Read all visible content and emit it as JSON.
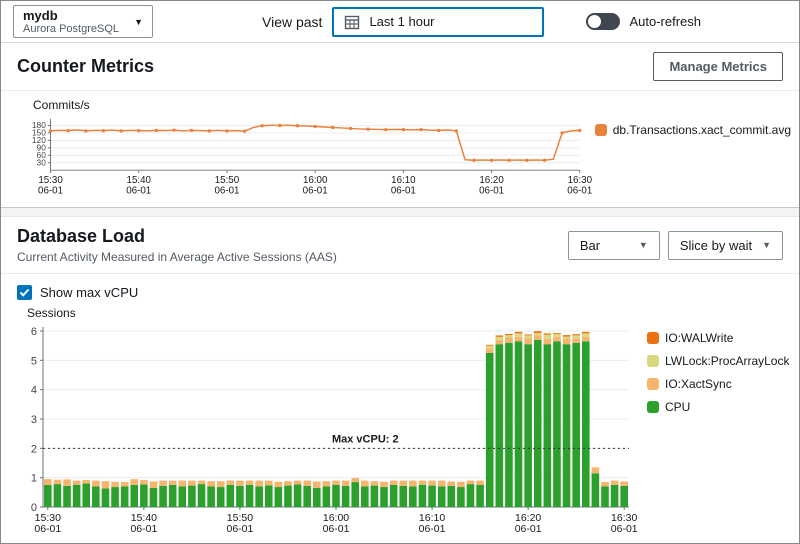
{
  "topbar": {
    "instance": {
      "name": "mydb",
      "engine": "Aurora PostgreSQL"
    },
    "view_past_label": "View past",
    "time_range": "Last 1 hour",
    "auto_refresh_label": "Auto-refresh",
    "auto_refresh_on": false
  },
  "counter_metrics": {
    "title": "Counter Metrics",
    "manage_button": "Manage Metrics"
  },
  "database_load": {
    "title": "Database Load",
    "subtitle": "Current Activity Measured in Average Active Sessions (AAS)",
    "chart_type_dropdown": "Bar",
    "slice_dropdown": "Slice by wait",
    "show_max_vcpu_label": "Show max vCPU",
    "show_max_vcpu_checked": true
  },
  "chart_data": [
    {
      "type": "line",
      "title": "Commits/s",
      "x_start": "15:30",
      "x_step_minutes": 1,
      "x_ticks": [
        {
          "time": "15:30",
          "date": "06-01"
        },
        {
          "time": "15:40",
          "date": "06-01"
        },
        {
          "time": "15:50",
          "date": "06-01"
        },
        {
          "time": "16:00",
          "date": "06-01"
        },
        {
          "time": "16:10",
          "date": "06-01"
        },
        {
          "time": "16:20",
          "date": "06-01"
        },
        {
          "time": "16:30",
          "date": "06-01"
        }
      ],
      "x_tick_every": 10,
      "ylim": [
        0,
        195
      ],
      "yticks": [
        30,
        60,
        90,
        120,
        150,
        180
      ],
      "grid": true,
      "legend_position": "right",
      "series": [
        {
          "name": "db.Transactions.xact_commit.avg",
          "color": "#e8823d",
          "values": [
            158,
            160,
            159,
            162,
            158,
            160,
            159,
            161,
            158,
            160,
            159,
            158,
            160,
            159,
            161,
            158,
            160,
            159,
            158,
            160,
            158,
            159,
            157,
            172,
            179,
            181,
            180,
            181,
            179,
            178,
            176,
            174,
            172,
            170,
            168,
            166,
            165,
            164,
            163,
            164,
            163,
            162,
            163,
            161,
            160,
            162,
            158,
            42,
            40,
            41,
            40,
            41,
            40,
            41,
            40,
            41,
            40,
            44,
            150,
            158,
            160
          ]
        }
      ]
    },
    {
      "type": "bar",
      "stacked": true,
      "title": "Sessions",
      "x_start": "15:30",
      "x_step_minutes": 1,
      "x_ticks": [
        {
          "time": "15:30",
          "date": "06-01"
        },
        {
          "time": "15:40",
          "date": "06-01"
        },
        {
          "time": "15:50",
          "date": "06-01"
        },
        {
          "time": "16:00",
          "date": "06-01"
        },
        {
          "time": "16:10",
          "date": "06-01"
        },
        {
          "time": "16:20",
          "date": "06-01"
        },
        {
          "time": "16:30",
          "date": "06-01"
        }
      ],
      "x_tick_every": 10,
      "ylim": [
        0,
        6
      ],
      "yticks": [
        0,
        1,
        2,
        3,
        4,
        5,
        6
      ],
      "grid": true,
      "legend_position": "right",
      "annotation": {
        "label": "Max vCPU: 2",
        "y": 2,
        "style": "dotted"
      },
      "series": [
        {
          "name": "CPU",
          "color": "#2ca02c",
          "values": [
            0.75,
            0.78,
            0.72,
            0.76,
            0.8,
            0.7,
            0.63,
            0.68,
            0.7,
            0.75,
            0.77,
            0.65,
            0.72,
            0.75,
            0.7,
            0.73,
            0.78,
            0.7,
            0.68,
            0.75,
            0.72,
            0.76,
            0.7,
            0.74,
            0.68,
            0.73,
            0.77,
            0.72,
            0.65,
            0.7,
            0.75,
            0.72,
            0.85,
            0.7,
            0.73,
            0.68,
            0.75,
            0.72,
            0.7,
            0.76,
            0.73,
            0.7,
            0.72,
            0.68,
            0.78,
            0.75,
            5.25,
            5.55,
            5.6,
            5.65,
            5.55,
            5.7,
            5.55,
            5.65,
            5.55,
            5.6,
            5.65,
            1.15,
            0.7,
            0.75,
            0.72
          ]
        },
        {
          "name": "IO:XactSync",
          "color": "#f5b56e",
          "values": [
            0.2,
            0.15,
            0.22,
            0.14,
            0.12,
            0.2,
            0.25,
            0.18,
            0.15,
            0.2,
            0.15,
            0.22,
            0.18,
            0.15,
            0.2,
            0.17,
            0.12,
            0.18,
            0.2,
            0.15,
            0.18,
            0.14,
            0.2,
            0.16,
            0.18,
            0.15,
            0.13,
            0.18,
            0.22,
            0.18,
            0.15,
            0.18,
            0.14,
            0.2,
            0.15,
            0.18,
            0.15,
            0.18,
            0.2,
            0.14,
            0.17,
            0.2,
            0.15,
            0.18,
            0.12,
            0.15,
            0.15,
            0.15,
            0.18,
            0.15,
            0.2,
            0.15,
            0.18,
            0.15,
            0.18,
            0.15,
            0.15,
            0.2,
            0.15,
            0.15,
            0.15
          ]
        },
        {
          "name": "LWLock:ProcArrayLock",
          "color": "#d9d881",
          "values": [
            0,
            0,
            0,
            0,
            0,
            0,
            0,
            0,
            0,
            0,
            0,
            0,
            0,
            0,
            0,
            0,
            0,
            0,
            0,
            0,
            0,
            0,
            0,
            0,
            0,
            0,
            0,
            0,
            0,
            0,
            0,
            0,
            0,
            0,
            0,
            0,
            0,
            0,
            0,
            0,
            0,
            0,
            0,
            0,
            0,
            0,
            0.1,
            0.1,
            0.08,
            0.12,
            0.1,
            0.08,
            0.15,
            0.1,
            0.08,
            0.1,
            0.12,
            0,
            0,
            0,
            0
          ]
        },
        {
          "name": "IO:WALWrite",
          "color": "#ec7211",
          "values": [
            0,
            0,
            0,
            0,
            0,
            0,
            0,
            0,
            0,
            0,
            0,
            0,
            0,
            0,
            0,
            0,
            0,
            0,
            0,
            0,
            0,
            0,
            0,
            0,
            0,
            0,
            0,
            0,
            0,
            0,
            0,
            0,
            0,
            0,
            0,
            0,
            0,
            0,
            0,
            0,
            0,
            0,
            0,
            0,
            0,
            0,
            0.03,
            0.05,
            0.04,
            0.05,
            0.03,
            0.06,
            0.04,
            0.03,
            0.05,
            0.04,
            0.05,
            0,
            0,
            0,
            0
          ]
        }
      ]
    }
  ]
}
